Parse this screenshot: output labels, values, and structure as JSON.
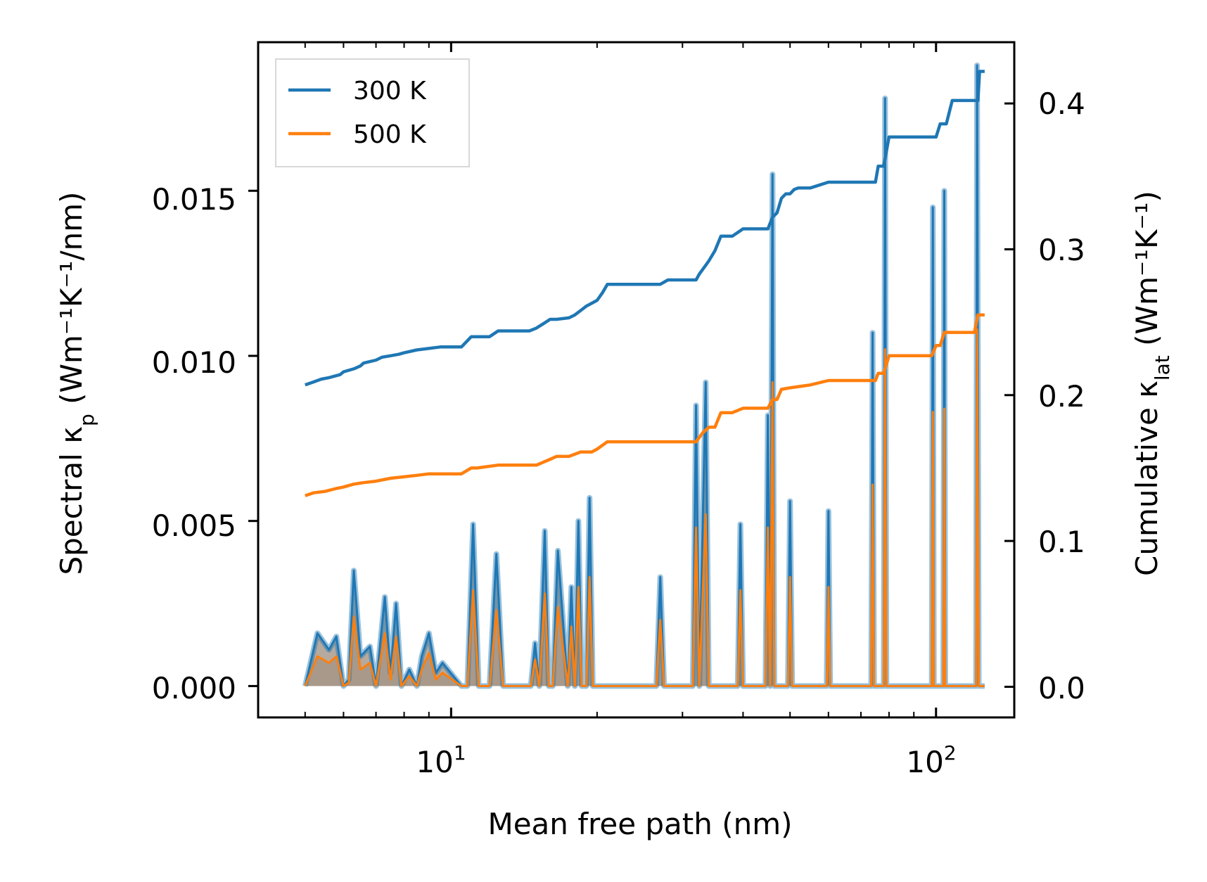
{
  "chart_data": {
    "type": "line",
    "title": "",
    "xlabel": "Mean free path (nm)",
    "ylabel_left": {
      "main": "Spectral κ",
      "sub": "p",
      "units": " (Wm⁻¹K⁻¹/nm)"
    },
    "ylabel_right": {
      "main": "Cumulative κ",
      "sub": "lat",
      "units": " (Wm⁻¹K⁻¹)"
    },
    "xscale": "log",
    "xlim": [
      4.0,
      145
    ],
    "ylim_left": [
      -0.00095,
      0.0195
    ],
    "ylim_right": [
      -0.021,
      0.442
    ],
    "x_tick_labels": [
      {
        "base": "10",
        "exp": "1",
        "value": 10
      },
      {
        "base": "10",
        "exp": "2",
        "value": 100
      }
    ],
    "y_left_ticks": [
      "0.000",
      "0.005",
      "0.010",
      "0.015"
    ],
    "y_left_tick_values": [
      0,
      0.005,
      0.01,
      0.015
    ],
    "y_right_ticks": [
      "0.0",
      "0.1",
      "0.2",
      "0.3",
      "0.4"
    ],
    "y_right_tick_values": [
      0,
      0.1,
      0.2,
      0.3,
      0.4
    ],
    "legend": {
      "position": "top-left",
      "entries": [
        {
          "name": "300 K",
          "color": "#1f77b4"
        },
        {
          "name": "500 K",
          "color": "#ff7f0e"
        }
      ]
    },
    "colors": {
      "c300": "#1f77b4",
      "c500": "#ff7f0e",
      "fill": "#9e8d7d"
    },
    "series": [
      {
        "name": "300 K",
        "cumulative": {
          "x": [
            5.0,
            5.2,
            5.4,
            5.6,
            5.9,
            6.0,
            6.3,
            6.5,
            6.6,
            6.8,
            7.0,
            7.2,
            7.5,
            7.8,
            8.0,
            8.5,
            9.0,
            9.5,
            10.0,
            10.5,
            11.0,
            11.2,
            12.0,
            12.5,
            13.0,
            14.5,
            15.0,
            15.5,
            16.0,
            16.5,
            17.5,
            18.0,
            18.5,
            19.0,
            19.5,
            20.0,
            20.5,
            21.0,
            22.0,
            24.0,
            27.0,
            28.0,
            30.0,
            32.0,
            32.5,
            33.5,
            34.0,
            35.0,
            36.0,
            38.0,
            40.0,
            42.0,
            45.0,
            46.0,
            47.0,
            48.0,
            49.0,
            50.0,
            51.0,
            52.0,
            55.0,
            60.0,
            62.0,
            65.0,
            70.0,
            75.0,
            76.0,
            78.0,
            80.0,
            82.0,
            85.0,
            90.0,
            95.0,
            100.0,
            102.0,
            105.0,
            108.0,
            115.0,
            122.0,
            123.0,
            126.0
          ],
          "y": [
            0.207,
            0.209,
            0.211,
            0.212,
            0.214,
            0.216,
            0.218,
            0.22,
            0.222,
            0.223,
            0.224,
            0.226,
            0.227,
            0.228,
            0.229,
            0.231,
            0.232,
            0.233,
            0.233,
            0.233,
            0.24,
            0.24,
            0.24,
            0.244,
            0.244,
            0.244,
            0.246,
            0.249,
            0.252,
            0.252,
            0.253,
            0.255,
            0.258,
            0.261,
            0.263,
            0.265,
            0.27,
            0.276,
            0.276,
            0.276,
            0.276,
            0.279,
            0.279,
            0.279,
            0.283,
            0.289,
            0.292,
            0.299,
            0.309,
            0.309,
            0.314,
            0.314,
            0.314,
            0.322,
            0.325,
            0.335,
            0.338,
            0.338,
            0.341,
            0.342,
            0.342,
            0.346,
            0.346,
            0.346,
            0.346,
            0.346,
            0.357,
            0.357,
            0.377,
            0.377,
            0.377,
            0.377,
            0.377,
            0.377,
            0.386,
            0.386,
            0.402,
            0.402,
            0.402,
            0.422,
            0.422
          ]
        },
        "spectral": {
          "x": [
            5.0,
            5.3,
            5.6,
            5.8,
            6.0,
            6.15,
            6.3,
            6.5,
            6.8,
            7.0,
            7.3,
            7.5,
            7.7,
            7.9,
            8.2,
            8.5,
            8.7,
            9.0,
            9.3,
            9.6,
            10.5,
            10.8,
            11.1,
            11.4,
            12.0,
            12.4,
            12.8,
            14.6,
            14.9,
            15.2,
            15.6,
            15.9,
            16.2,
            16.6,
            17.4,
            17.7,
            18.0,
            18.3,
            18.6,
            19.0,
            19.3,
            19.6,
            20.0,
            20.3,
            20.6,
            20.9,
            21.2,
            26.5,
            27.0,
            27.5,
            31.5,
            32.0,
            32.5,
            33.5,
            34.0,
            34.5,
            35.0,
            35.5,
            39.0,
            39.5,
            40.0,
            44.5,
            45.0,
            45.5,
            46.0,
            46.4,
            46.8,
            47.2,
            49.5,
            50.0,
            50.5,
            59.5,
            60.0,
            60.5,
            73.5,
            74.0,
            74.5,
            78.0,
            78.5,
            79.0,
            98.0,
            98.5,
            99.0,
            103.5,
            104.0,
            104.5,
            121.0,
            121.5,
            122.5,
            126.0
          ],
          "y300": [
            0,
            0.0016,
            0.0011,
            0.0015,
            0.0,
            0.0002,
            0.0035,
            0.0009,
            0.0012,
            0.0,
            0.0027,
            0.0004,
            0.0025,
            0.0,
            0.0005,
            0.0,
            0.0009,
            0.0016,
            0.0004,
            0.0007,
            0.0,
            0.0,
            0.0049,
            0.0,
            0.0,
            0.004,
            0.0,
            0.0,
            0.0013,
            0.0,
            0.0047,
            0.0,
            0.0,
            0.0041,
            0.0,
            0.003,
            0.0,
            0.005,
            0.0,
            0.0,
            0.0057,
            0.0,
            0.0,
            0.0,
            0.0,
            0.0,
            0.0,
            0.0,
            0.0033,
            0.0,
            0.0,
            0.0085,
            0.0,
            0.0092,
            0.0,
            0.0,
            0.0,
            0.0,
            0.0,
            0.0049,
            0.0,
            0.0,
            0.0082,
            0.0,
            0.0155,
            0.0,
            0.0,
            0.0,
            0.0,
            0.0056,
            0.0,
            0.0,
            0.0053,
            0.0,
            0.0,
            0.0107,
            0.0,
            0.0,
            0.0178,
            0.0,
            0.0,
            0.0145,
            0.0,
            0.0,
            0.015,
            0.0,
            0.0,
            0.0188,
            0.0,
            0.0
          ],
          "y500": [
            0,
            0.0009,
            0.0007,
            0.0009,
            0.0,
            0.0001,
            0.0021,
            0.0005,
            0.0007,
            0.0,
            0.0016,
            0.0002,
            0.0015,
            0.0,
            0.0003,
            0.0,
            0.0005,
            0.001,
            0.0002,
            0.0004,
            0.0,
            0.0,
            0.0029,
            0.0,
            0.0,
            0.0023,
            0.0,
            0.0,
            0.0008,
            0.0,
            0.0028,
            0.0,
            0.0,
            0.0024,
            0.0,
            0.0018,
            0.0,
            0.003,
            0.0,
            0.0,
            0.0033,
            0.0,
            0.0,
            0.0,
            0.0,
            0.0,
            0.0,
            0.0,
            0.002,
            0.0,
            0.0,
            0.0048,
            0.0,
            0.0052,
            0.0,
            0.0,
            0.0,
            0.0,
            0.0,
            0.0029,
            0.0,
            0.0,
            0.0048,
            0.0,
            0.0092,
            0.0,
            0.0,
            0.0,
            0.0,
            0.0033,
            0.0,
            0.0,
            0.003,
            0.0,
            0.0,
            0.0061,
            0.0,
            0.0,
            0.0102,
            0.0,
            0.0,
            0.0083,
            0.0,
            0.0,
            0.0084,
            0.0,
            0.0,
            0.0108,
            0.0,
            0.0
          ]
        }
      },
      {
        "name": "500 K",
        "cumulative": {
          "x": [
            5.0,
            5.2,
            5.5,
            5.8,
            6.0,
            6.3,
            6.6,
            7.0,
            7.5,
            8.0,
            8.5,
            9.0,
            9.5,
            10.0,
            10.5,
            11.0,
            11.3,
            12.5,
            13.0,
            15.0,
            15.5,
            16.0,
            16.5,
            17.5,
            18.5,
            19.5,
            20.0,
            21.0,
            24.0,
            28.0,
            32.0,
            33.0,
            34.0,
            35.0,
            36.0,
            38.0,
            40.0,
            45.0,
            46.0,
            47.0,
            48.0,
            50.0,
            55.0,
            60.0,
            62.0,
            75.0,
            76.0,
            78.0,
            80.0,
            90.0,
            98.0,
            100.0,
            102.0,
            104.0,
            110.0,
            120.0,
            122.0,
            126.0
          ],
          "y": [
            0.131,
            0.133,
            0.134,
            0.136,
            0.137,
            0.139,
            0.14,
            0.141,
            0.143,
            0.144,
            0.145,
            0.146,
            0.146,
            0.146,
            0.146,
            0.15,
            0.15,
            0.152,
            0.152,
            0.152,
            0.154,
            0.156,
            0.158,
            0.158,
            0.161,
            0.161,
            0.163,
            0.168,
            0.168,
            0.168,
            0.168,
            0.174,
            0.178,
            0.178,
            0.188,
            0.188,
            0.191,
            0.191,
            0.197,
            0.197,
            0.204,
            0.205,
            0.207,
            0.21,
            0.21,
            0.21,
            0.215,
            0.215,
            0.227,
            0.227,
            0.227,
            0.234,
            0.234,
            0.243,
            0.243,
            0.243,
            0.255,
            0.255
          ]
        }
      }
    ]
  }
}
